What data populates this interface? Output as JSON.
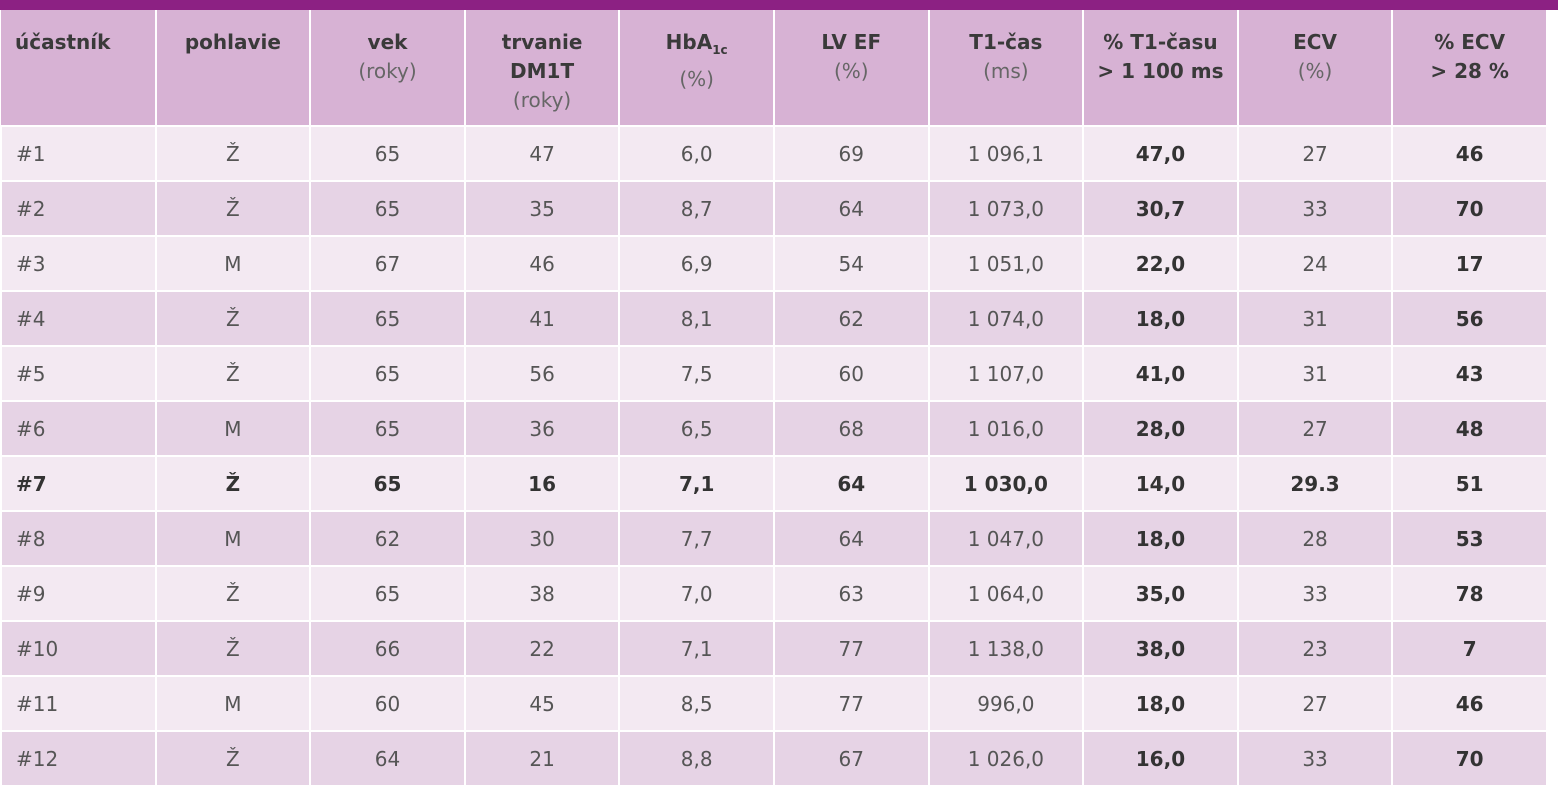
{
  "table": {
    "header": [
      {
        "lines": [
          "účastník"
        ]
      },
      {
        "lines": [
          "pohlavie"
        ]
      },
      {
        "lines": [
          "vek"
        ],
        "unit": "(roky)"
      },
      {
        "lines": [
          "trvanie",
          "DM1T"
        ],
        "unit": "(roky)"
      },
      {
        "lines": [
          "HbA"
        ],
        "sub": "1c",
        "unit": "(%)"
      },
      {
        "lines": [
          "LV EF"
        ],
        "unit": "(%)"
      },
      {
        "lines": [
          "T1-čas"
        ],
        "unit": "(ms)"
      },
      {
        "lines": [
          "% T1-času",
          "> 1 100 ms"
        ]
      },
      {
        "lines": [
          "ECV"
        ],
        "unit": "(%)"
      },
      {
        "lines": [
          "% ECV",
          "> 28 %"
        ]
      }
    ],
    "rows": [
      [
        "#1",
        "Ž",
        "65",
        "47",
        "6,0",
        "69",
        "1 096,1",
        "47,0",
        "27",
        "46"
      ],
      [
        "#2",
        "Ž",
        "65",
        "35",
        "8,7",
        "64",
        "1 073,0",
        "30,7",
        "33",
        "70"
      ],
      [
        "#3",
        "M",
        "67",
        "46",
        "6,9",
        "54",
        "1 051,0",
        "22,0",
        "24",
        "17"
      ],
      [
        "#4",
        "Ž",
        "65",
        "41",
        "8,1",
        "62",
        "1 074,0",
        "18,0",
        "31",
        "56"
      ],
      [
        "#5",
        "Ž",
        "65",
        "56",
        "7,5",
        "60",
        "1 107,0",
        "41,0",
        "31",
        "43"
      ],
      [
        "#6",
        "M",
        "65",
        "36",
        "6,5",
        "68",
        "1 016,0",
        "28,0",
        "27",
        "48"
      ],
      [
        "#7",
        "Ž",
        "65",
        "16",
        "7,1",
        "64",
        "1 030,0",
        "14,0",
        "29.3",
        "51"
      ],
      [
        "#8",
        "M",
        "62",
        "30",
        "7,7",
        "64",
        "1 047,0",
        "18,0",
        "28",
        "53"
      ],
      [
        "#9",
        "Ž",
        "65",
        "38",
        "7,0",
        "63",
        "1 064,0",
        "35,0",
        "33",
        "78"
      ],
      [
        "#10",
        "Ž",
        "66",
        "22",
        "7,1",
        "77",
        "1 138,0",
        "38,0",
        "23",
        "7"
      ],
      [
        "#11",
        "M",
        "60",
        "45",
        "8,5",
        "77",
        "996,0",
        "18,0",
        "27",
        "46"
      ],
      [
        "#12",
        "Ž",
        "64",
        "21",
        "8,8",
        "67",
        "1 026,0",
        "16,0",
        "33",
        "70"
      ]
    ]
  }
}
